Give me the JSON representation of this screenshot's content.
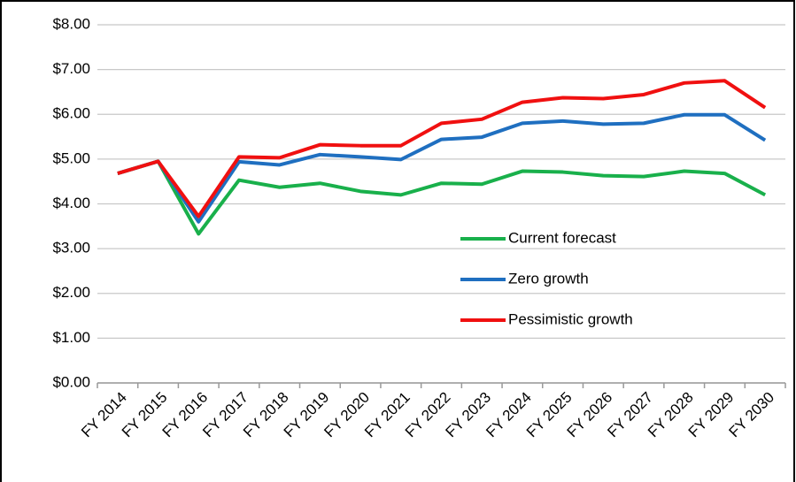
{
  "chart_data": {
    "type": "line",
    "categories": [
      "FY 2014",
      "FY 2015",
      "FY 2016",
      "FY 2017",
      "FY 2018",
      "FY 2019",
      "FY 2020",
      "FY 2021",
      "FY 2022",
      "FY 2023",
      "FY 2024",
      "FY 2025",
      "FY 2026",
      "FY 2027",
      "FY 2028",
      "FY 2029",
      "FY 2030"
    ],
    "series": [
      {
        "name": "Current forecast",
        "color": "#19b04b",
        "values": [
          4.68,
          4.95,
          3.33,
          4.53,
          4.37,
          4.46,
          4.28,
          4.2,
          4.46,
          4.44,
          4.73,
          4.71,
          4.63,
          4.61,
          4.73,
          4.68,
          4.2
        ]
      },
      {
        "name": "Zero growth",
        "color": "#1f6fc0",
        "values": [
          4.68,
          4.95,
          3.6,
          4.94,
          4.87,
          5.1,
          5.05,
          4.99,
          5.44,
          5.49,
          5.8,
          5.85,
          5.78,
          5.8,
          5.99,
          5.99,
          5.42
        ]
      },
      {
        "name": "Pessimistic growth",
        "color": "#f01010",
        "values": [
          4.68,
          4.95,
          3.72,
          5.05,
          5.03,
          5.32,
          5.3,
          5.3,
          5.8,
          5.89,
          6.27,
          6.37,
          6.35,
          6.44,
          6.7,
          6.75,
          6.15
        ]
      }
    ],
    "ylim": [
      0,
      8
    ],
    "yticks": [
      {
        "value": 0,
        "label": "$0.00"
      },
      {
        "value": 1,
        "label": "$1.00"
      },
      {
        "value": 2,
        "label": "$2.00"
      },
      {
        "value": 3,
        "label": "$3.00"
      },
      {
        "value": 4,
        "label": "$4.00"
      },
      {
        "value": 5,
        "label": "$5.00"
      },
      {
        "value": 6,
        "label": "$6.00"
      },
      {
        "value": 7,
        "label": "$7.00"
      },
      {
        "value": 8,
        "label": "$8.00"
      }
    ],
    "grid": true
  }
}
